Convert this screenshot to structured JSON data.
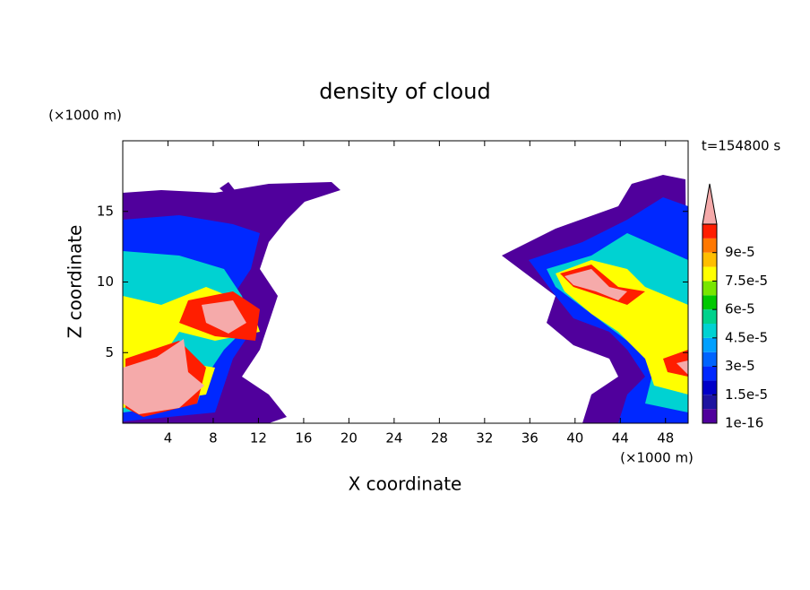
{
  "chart_data": {
    "type": "contour",
    "title": "density of cloud",
    "x_label": "X coordinate",
    "y_label": "Z coordinate",
    "x_unit": "(×1000 m)",
    "y_unit": "(×1000 m)",
    "annotation": "t=154800 s",
    "xlim": [
      0,
      50
    ],
    "xticks": [
      4,
      8,
      12,
      16,
      20,
      24,
      28,
      32,
      36,
      40,
      44,
      48
    ],
    "ylim": [
      0,
      20
    ],
    "yticks": [
      5,
      10,
      15
    ],
    "clim": [
      1e-16,
      0.000105
    ],
    "cticks": [
      1e-16,
      {
        "value": 1.5e-05,
        "label": "1.5e-5"
      },
      {
        "value": 3e-05,
        "label": "3e-5"
      },
      {
        "value": 4.5e-05,
        "label": "4.5e-5"
      },
      {
        "value": 6e-05,
        "label": "6e-5"
      },
      {
        "value": 7.5e-05,
        "label": "7.5e-5"
      },
      {
        "value": 9e-05,
        "label": "9e-5"
      }
    ],
    "colors": [
      "#50009c",
      "#1e14a0",
      "#0000c8",
      "#0028ff",
      "#0064ff",
      "#00a0ff",
      "#00d2d2",
      "#00d28c",
      "#00c800",
      "#78e600",
      "#ffff00",
      "#ffbe00",
      "#ff7800",
      "#ff1e00"
    ],
    "over_color": "#f5aaaa",
    "grid": false
  }
}
